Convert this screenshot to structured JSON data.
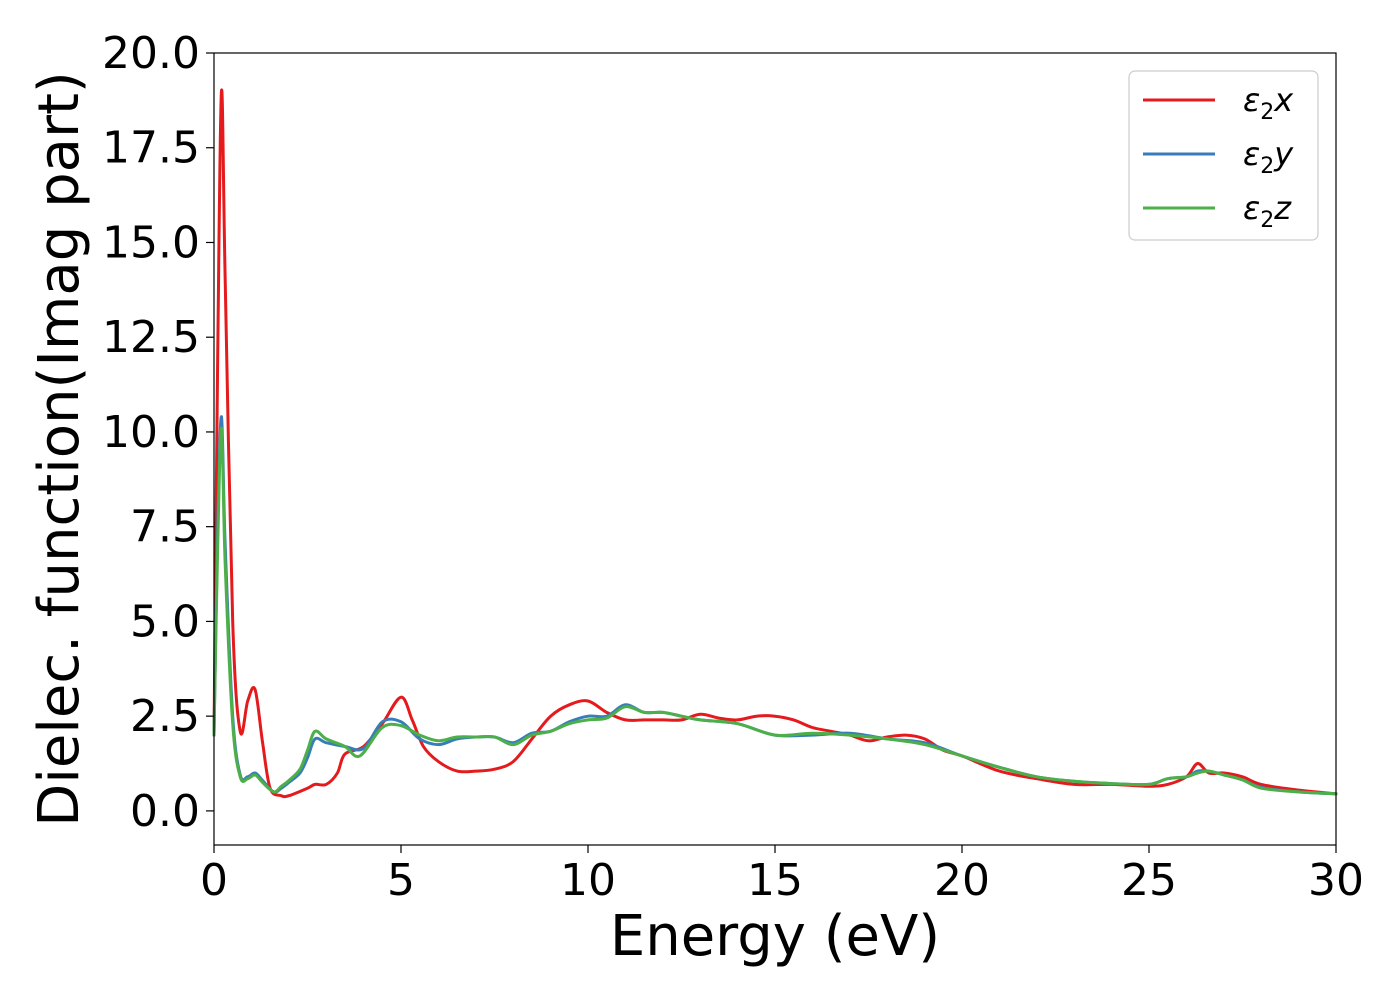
{
  "chart_data": {
    "type": "line",
    "title": "",
    "xlabel": "Energy (eV)",
    "ylabel": "Dielec. function(Imag part)",
    "xlim": [
      0,
      30
    ],
    "ylim": [
      -0.9,
      20.0
    ],
    "grid": false,
    "legend_position": "top-right",
    "x_ticks": [
      0,
      5,
      10,
      15,
      20,
      25,
      30
    ],
    "x_tick_labels": [
      "0",
      "5",
      "10",
      "15",
      "20",
      "25",
      "30"
    ],
    "y_ticks": [
      0.0,
      2.5,
      5.0,
      7.5,
      10.0,
      12.5,
      15.0,
      17.5,
      20.0
    ],
    "y_tick_labels": [
      "0.0",
      "2.5",
      "5.0",
      "7.5",
      "10.0",
      "12.5",
      "15.0",
      "17.5",
      "20.0"
    ],
    "series": [
      {
        "name": "ε2x",
        "legend_parts": [
          "ε",
          "2",
          "x"
        ],
        "color": "#e41a1c",
        "x": [
          0,
          0.1,
          0.2,
          0.3,
          0.5,
          0.7,
          0.9,
          1.1,
          1.3,
          1.5,
          1.8,
          2.0,
          2.5,
          2.7,
          3.0,
          3.3,
          3.5,
          4.0,
          4.5,
          5.0,
          5.3,
          5.6,
          6.0,
          6.5,
          7.0,
          7.5,
          8.0,
          8.5,
          9.0,
          9.5,
          10.0,
          10.5,
          11.0,
          11.5,
          12.0,
          12.5,
          13.0,
          13.5,
          14.0,
          14.5,
          15.0,
          15.5,
          16.0,
          16.5,
          17.0,
          17.5,
          18.0,
          18.5,
          19.0,
          19.5,
          20.0,
          21.0,
          22.0,
          23.0,
          24.0,
          25.0,
          25.5,
          26.0,
          26.3,
          26.6,
          27.0,
          27.5,
          28.0,
          29.0,
          30.0
        ],
        "y": [
          2.0,
          12.0,
          19.0,
          14.0,
          5.0,
          2.1,
          2.9,
          3.2,
          1.8,
          0.6,
          0.4,
          0.4,
          0.6,
          0.7,
          0.7,
          1.0,
          1.5,
          1.7,
          2.3,
          3.0,
          2.4,
          1.7,
          1.3,
          1.05,
          1.05,
          1.1,
          1.3,
          1.9,
          2.5,
          2.8,
          2.9,
          2.6,
          2.4,
          2.4,
          2.4,
          2.4,
          2.55,
          2.45,
          2.4,
          2.5,
          2.5,
          2.4,
          2.2,
          2.1,
          2.0,
          1.85,
          1.95,
          2.0,
          1.9,
          1.6,
          1.45,
          1.05,
          0.85,
          0.7,
          0.7,
          0.65,
          0.7,
          0.9,
          1.25,
          1.0,
          1.0,
          0.9,
          0.7,
          0.55,
          0.45
        ]
      },
      {
        "name": "ε2y",
        "legend_parts": [
          "ε",
          "2",
          "y"
        ],
        "color": "#377eb8",
        "x": [
          0,
          0.1,
          0.2,
          0.3,
          0.5,
          0.7,
          0.9,
          1.1,
          1.3,
          1.6,
          1.8,
          2.0,
          2.3,
          2.5,
          2.7,
          3.0,
          3.5,
          4.0,
          4.5,
          5.0,
          5.5,
          6.0,
          6.5,
          7.0,
          7.5,
          8.0,
          8.5,
          9.0,
          9.5,
          10.0,
          10.5,
          11.0,
          11.5,
          12.0,
          12.5,
          13.0,
          14.0,
          15.0,
          16.0,
          17.0,
          18.0,
          19.0,
          20.0,
          21.0,
          22.0,
          23.0,
          24.0,
          25.0,
          25.5,
          26.0,
          26.3,
          26.6,
          27.0,
          27.5,
          28.0,
          29.0,
          30.0
        ],
        "y": [
          2.0,
          7.5,
          10.4,
          7.0,
          2.5,
          0.95,
          0.9,
          1.0,
          0.8,
          0.5,
          0.6,
          0.75,
          1.0,
          1.4,
          1.9,
          1.8,
          1.7,
          1.65,
          2.35,
          2.35,
          1.9,
          1.75,
          1.9,
          1.95,
          1.95,
          1.8,
          2.05,
          2.1,
          2.35,
          2.5,
          2.5,
          2.8,
          2.6,
          2.6,
          2.5,
          2.4,
          2.3,
          2.0,
          2.0,
          2.05,
          1.9,
          1.8,
          1.45,
          1.15,
          0.9,
          0.78,
          0.72,
          0.7,
          0.85,
          0.9,
          1.05,
          1.05,
          0.95,
          0.82,
          0.62,
          0.5,
          0.45
        ]
      },
      {
        "name": "ε2z",
        "legend_parts": [
          "ε",
          "2",
          "z"
        ],
        "color": "#4daf4a",
        "x": [
          0,
          0.1,
          0.2,
          0.3,
          0.5,
          0.7,
          0.9,
          1.1,
          1.3,
          1.6,
          1.8,
          2.0,
          2.3,
          2.5,
          2.7,
          3.0,
          3.5,
          3.9,
          4.5,
          5.0,
          5.5,
          6.0,
          6.5,
          7.0,
          7.5,
          8.0,
          8.5,
          9.0,
          9.5,
          10.0,
          10.5,
          11.0,
          11.5,
          12.0,
          12.5,
          13.0,
          14.0,
          15.0,
          16.0,
          17.0,
          18.0,
          19.0,
          20.0,
          21.0,
          22.0,
          23.0,
          24.0,
          25.0,
          25.5,
          26.0,
          26.3,
          26.6,
          27.0,
          27.5,
          28.0,
          29.0,
          30.0
        ],
        "y": [
          2.0,
          7.0,
          10.1,
          6.5,
          2.3,
          0.9,
          0.85,
          0.95,
          0.75,
          0.5,
          0.65,
          0.8,
          1.1,
          1.6,
          2.1,
          1.9,
          1.7,
          1.45,
          2.2,
          2.25,
          2.0,
          1.85,
          1.95,
          1.95,
          1.95,
          1.75,
          2.0,
          2.1,
          2.3,
          2.4,
          2.45,
          2.75,
          2.6,
          2.6,
          2.5,
          2.4,
          2.3,
          2.0,
          2.05,
          2.0,
          1.9,
          1.75,
          1.45,
          1.15,
          0.9,
          0.78,
          0.72,
          0.7,
          0.85,
          0.9,
          1.0,
          1.05,
          0.95,
          0.82,
          0.6,
          0.5,
          0.45
        ]
      }
    ]
  }
}
